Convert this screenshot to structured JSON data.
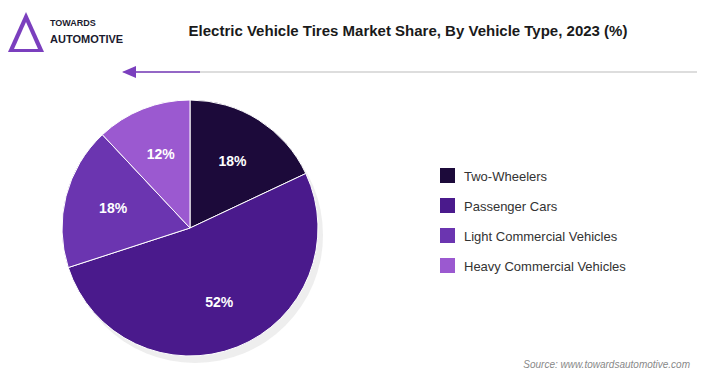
{
  "chart_data": {
    "type": "pie",
    "title": "Electric Vehicle Tires Market Share, By Vehicle Type, 2023 (%)",
    "categories": [
      "Two-Wheelers",
      "Passenger Cars",
      "Light Commercial Vehicles",
      "Heavy Commercial Vehicles"
    ],
    "values": [
      18,
      52,
      18,
      12
    ],
    "value_labels": [
      "18%",
      "52%",
      "18%",
      "12%"
    ],
    "colors": [
      "#1c0a3a",
      "#4a1a8c",
      "#6b35b0",
      "#9b59d0"
    ],
    "data_labels": true,
    "legend": "right",
    "source": "Source: www.towardsautomotive.com",
    "annotations": [
      "TOWARDS",
      "AUTOMOTIVE"
    ]
  }
}
